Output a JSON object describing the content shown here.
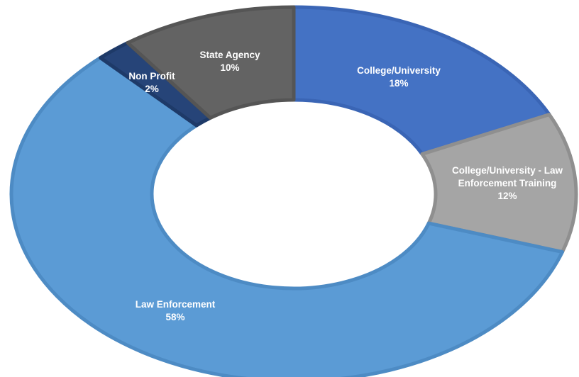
{
  "chart_data": {
    "type": "donut",
    "title": "",
    "legend": "none",
    "slices": [
      {
        "label_lines": [
          "College/University"
        ],
        "value": 18,
        "value_label": "18%",
        "color": "#4472c4",
        "stroke": "#3a65b5"
      },
      {
        "label_lines": [
          "College/University - Law",
          "Enforcement Training"
        ],
        "value": 12,
        "value_label": "12%",
        "color": "#a5a5a5",
        "stroke": "#8f8f8f"
      },
      {
        "label_lines": [
          "Law Enforcement"
        ],
        "value": 58,
        "value_label": "58%",
        "color": "#5b9bd5",
        "stroke": "#4d8bc4"
      },
      {
        "label_lines": [
          "Non Profit"
        ],
        "value": 2,
        "value_label": "2%",
        "color": "#264478",
        "stroke": "#1e3a68"
      },
      {
        "label_lines": [
          "State Agency"
        ],
        "value": 10,
        "value_label": "10%",
        "color": "#636363",
        "stroke": "#555555"
      }
    ]
  }
}
